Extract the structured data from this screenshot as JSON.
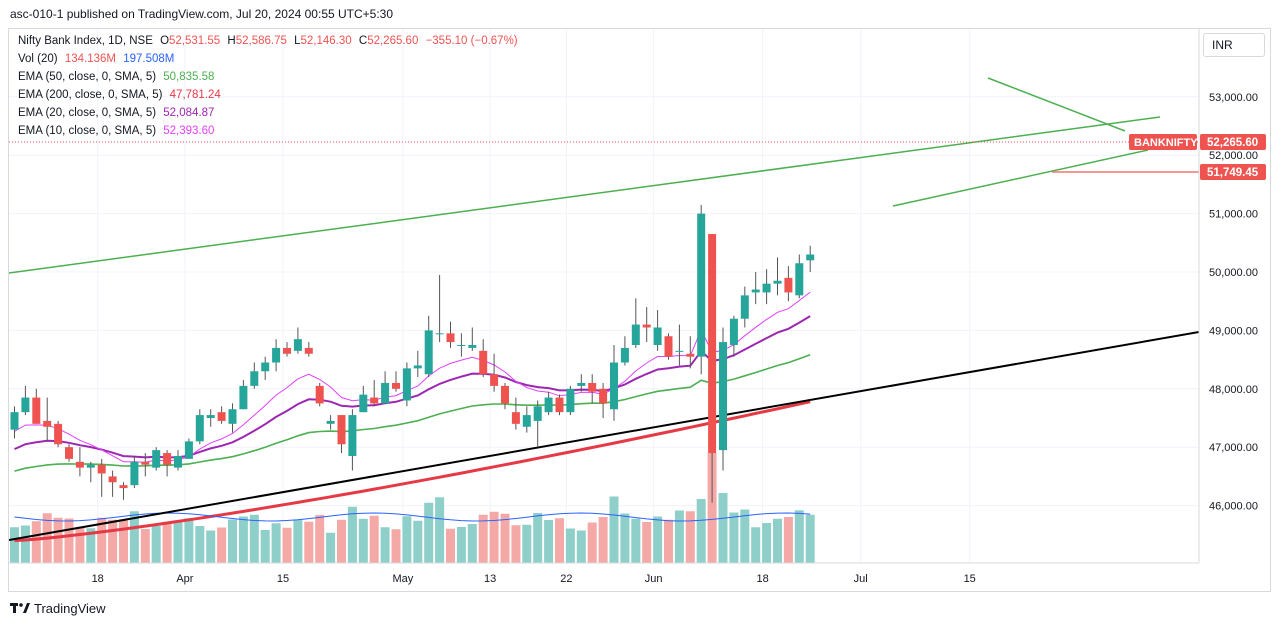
{
  "header": {
    "publish_line": "asc-010-1 published on TradingView.com, Jul 20, 2024 00:55 UTC+5:30"
  },
  "legend": {
    "symbol": "Nifty Bank Index, 1D, NSE",
    "ohlc": {
      "o_label": "O",
      "o": "52,531.55",
      "h_label": "H",
      "h": "52,586.75",
      "l_label": "L",
      "l": "52,146.30",
      "c_label": "C",
      "c": "52,265.60",
      "change": "−355.10 (−0.67%)"
    },
    "vol": {
      "label": "Vol (20)",
      "v1": "134.136M",
      "v2": "197.508M"
    },
    "ema_lines": [
      {
        "label": "EMA (50, close, 0, SMA, 5)",
        "value": "50,835.58",
        "color": "#4caf50"
      },
      {
        "label": "EMA (200, close, 0, SMA, 5)",
        "value": "47,781.24",
        "color": "#e63946"
      },
      {
        "label": "EMA (20, close, 0, SMA, 5)",
        "value": "52,084.87",
        "color": "#9c27b0"
      },
      {
        "label": "EMA (10, close, 0, SMA, 5)",
        "value": "52,393.60",
        "color": "#e040fb"
      }
    ]
  },
  "currency_selector": "INR",
  "price_labels": {
    "ticker": "BANKNIFTY",
    "last_price": "52,265.60",
    "level_price": "51,749.45"
  },
  "footer": {
    "brand": "TradingView"
  },
  "colors": {
    "up": "#26a69a",
    "down": "#ef5350",
    "up_vol": "#8fcfc9",
    "down_vol": "#f4a9a6"
  },
  "chart_data": {
    "type": "candlestick",
    "title": "Nifty Bank Index, 1D, NSE",
    "y_ticks": [
      46000,
      47000,
      48000,
      49000,
      50000,
      51000,
      52000,
      53000
    ],
    "y_tick_labels": [
      "46,000.00",
      "47,000.00",
      "48,000.00",
      "49,000.00",
      "50,000.00",
      "51,000.00",
      "52,000.00",
      "53,000.00"
    ],
    "x_tick_labels": [
      {
        "label": "18",
        "index": 8
      },
      {
        "label": "Apr",
        "index": 16
      },
      {
        "label": "15",
        "index": 25
      },
      {
        "label": "May",
        "index": 36
      },
      {
        "label": "13",
        "index": 44
      },
      {
        "label": "22",
        "index": 51
      },
      {
        "label": "Jun",
        "index": 59
      },
      {
        "label": "18",
        "index": 69
      },
      {
        "label": "Jul",
        "index": 78
      },
      {
        "label": "15",
        "index": 88
      }
    ],
    "candles": [
      [
        47300,
        47700,
        47150,
        47600
      ],
      [
        47600,
        48050,
        47550,
        47850
      ],
      [
        47850,
        48000,
        47450,
        47400
      ],
      [
        47450,
        47850,
        47100,
        47350
      ],
      [
        47400,
        47450,
        47000,
        47050
      ],
      [
        47000,
        47050,
        46750,
        46800
      ],
      [
        46750,
        47000,
        46500,
        46650
      ],
      [
        46650,
        46750,
        46400,
        46700
      ],
      [
        46700,
        46800,
        46150,
        46550
      ],
      [
        46500,
        46600,
        46150,
        46400
      ],
      [
        46350,
        46400,
        46100,
        46300
      ],
      [
        46350,
        46850,
        46300,
        46750
      ],
      [
        46750,
        46900,
        46500,
        46700
      ],
      [
        46650,
        47000,
        46600,
        46950
      ],
      [
        46900,
        46950,
        46500,
        46700
      ],
      [
        46650,
        46950,
        46600,
        46850
      ],
      [
        46800,
        47150,
        46800,
        47100
      ],
      [
        47100,
        47650,
        47050,
        47550
      ],
      [
        47500,
        47650,
        47350,
        47550
      ],
      [
        47600,
        47700,
        47400,
        47450
      ],
      [
        47400,
        47750,
        47250,
        47650
      ],
      [
        47650,
        48150,
        47650,
        48050
      ],
      [
        48050,
        48450,
        48000,
        48300
      ],
      [
        48300,
        48550,
        48150,
        48450
      ],
      [
        48450,
        48850,
        48300,
        48700
      ],
      [
        48700,
        48800,
        48550,
        48600
      ],
      [
        48650,
        49050,
        48600,
        48850
      ],
      [
        48700,
        48800,
        48550,
        48600
      ],
      [
        48050,
        48100,
        47700,
        47750
      ],
      [
        47400,
        47550,
        47300,
        47450
      ],
      [
        47550,
        47550,
        46900,
        47050
      ],
      [
        46850,
        47650,
        46600,
        47550
      ],
      [
        47600,
        48050,
        47600,
        47900
      ],
      [
        47850,
        48150,
        47700,
        47750
      ],
      [
        47750,
        48300,
        47750,
        48100
      ],
      [
        48100,
        48300,
        47950,
        48000
      ],
      [
        47800,
        48450,
        47700,
        48350
      ],
      [
        48350,
        48650,
        48200,
        48400
      ],
      [
        48250,
        49250,
        48200,
        49000
      ],
      [
        48950,
        49950,
        48800,
        48950
      ],
      [
        48950,
        49150,
        48700,
        48800
      ],
      [
        48750,
        48950,
        48550,
        48750
      ],
      [
        48700,
        49050,
        48650,
        48750
      ],
      [
        48650,
        48850,
        48200,
        48250
      ],
      [
        48250,
        48600,
        47950,
        48050
      ],
      [
        48050,
        48100,
        47650,
        47750
      ],
      [
        47600,
        47850,
        47300,
        47400
      ],
      [
        47350,
        47700,
        47250,
        47550
      ],
      [
        47450,
        47800,
        47000,
        47700
      ],
      [
        47600,
        47950,
        47550,
        47850
      ],
      [
        47850,
        47900,
        47550,
        47600
      ],
      [
        47600,
        48050,
        47550,
        48000
      ],
      [
        48050,
        48250,
        47950,
        48100
      ],
      [
        48100,
        48250,
        47750,
        47950
      ],
      [
        48000,
        48100,
        47500,
        47750
      ],
      [
        47650,
        48750,
        47450,
        48450
      ],
      [
        48450,
        48900,
        48400,
        48700
      ],
      [
        48750,
        49550,
        48700,
        49100
      ],
      [
        49100,
        49400,
        48800,
        49050
      ],
      [
        48750,
        49350,
        48650,
        49050
      ],
      [
        48900,
        48950,
        48500,
        48550
      ],
      [
        48650,
        49100,
        48400,
        48650
      ],
      [
        48600,
        48900,
        48350,
        48550
      ],
      [
        48550,
        51150,
        48250,
        51000
      ],
      [
        50650,
        50650,
        46050,
        46900
      ],
      [
        46950,
        49050,
        46600,
        48800
      ],
      [
        48750,
        49250,
        48550,
        49200
      ],
      [
        49200,
        49750,
        49050,
        49600
      ],
      [
        49650,
        50000,
        49450,
        49700
      ],
      [
        49650,
        50050,
        49450,
        49800
      ],
      [
        49800,
        50250,
        49600,
        49850
      ],
      [
        49900,
        50100,
        49500,
        49650
      ],
      [
        49600,
        50300,
        49550,
        50150
      ],
      [
        50200,
        50450,
        50000,
        50300
      ]
    ]
  }
}
